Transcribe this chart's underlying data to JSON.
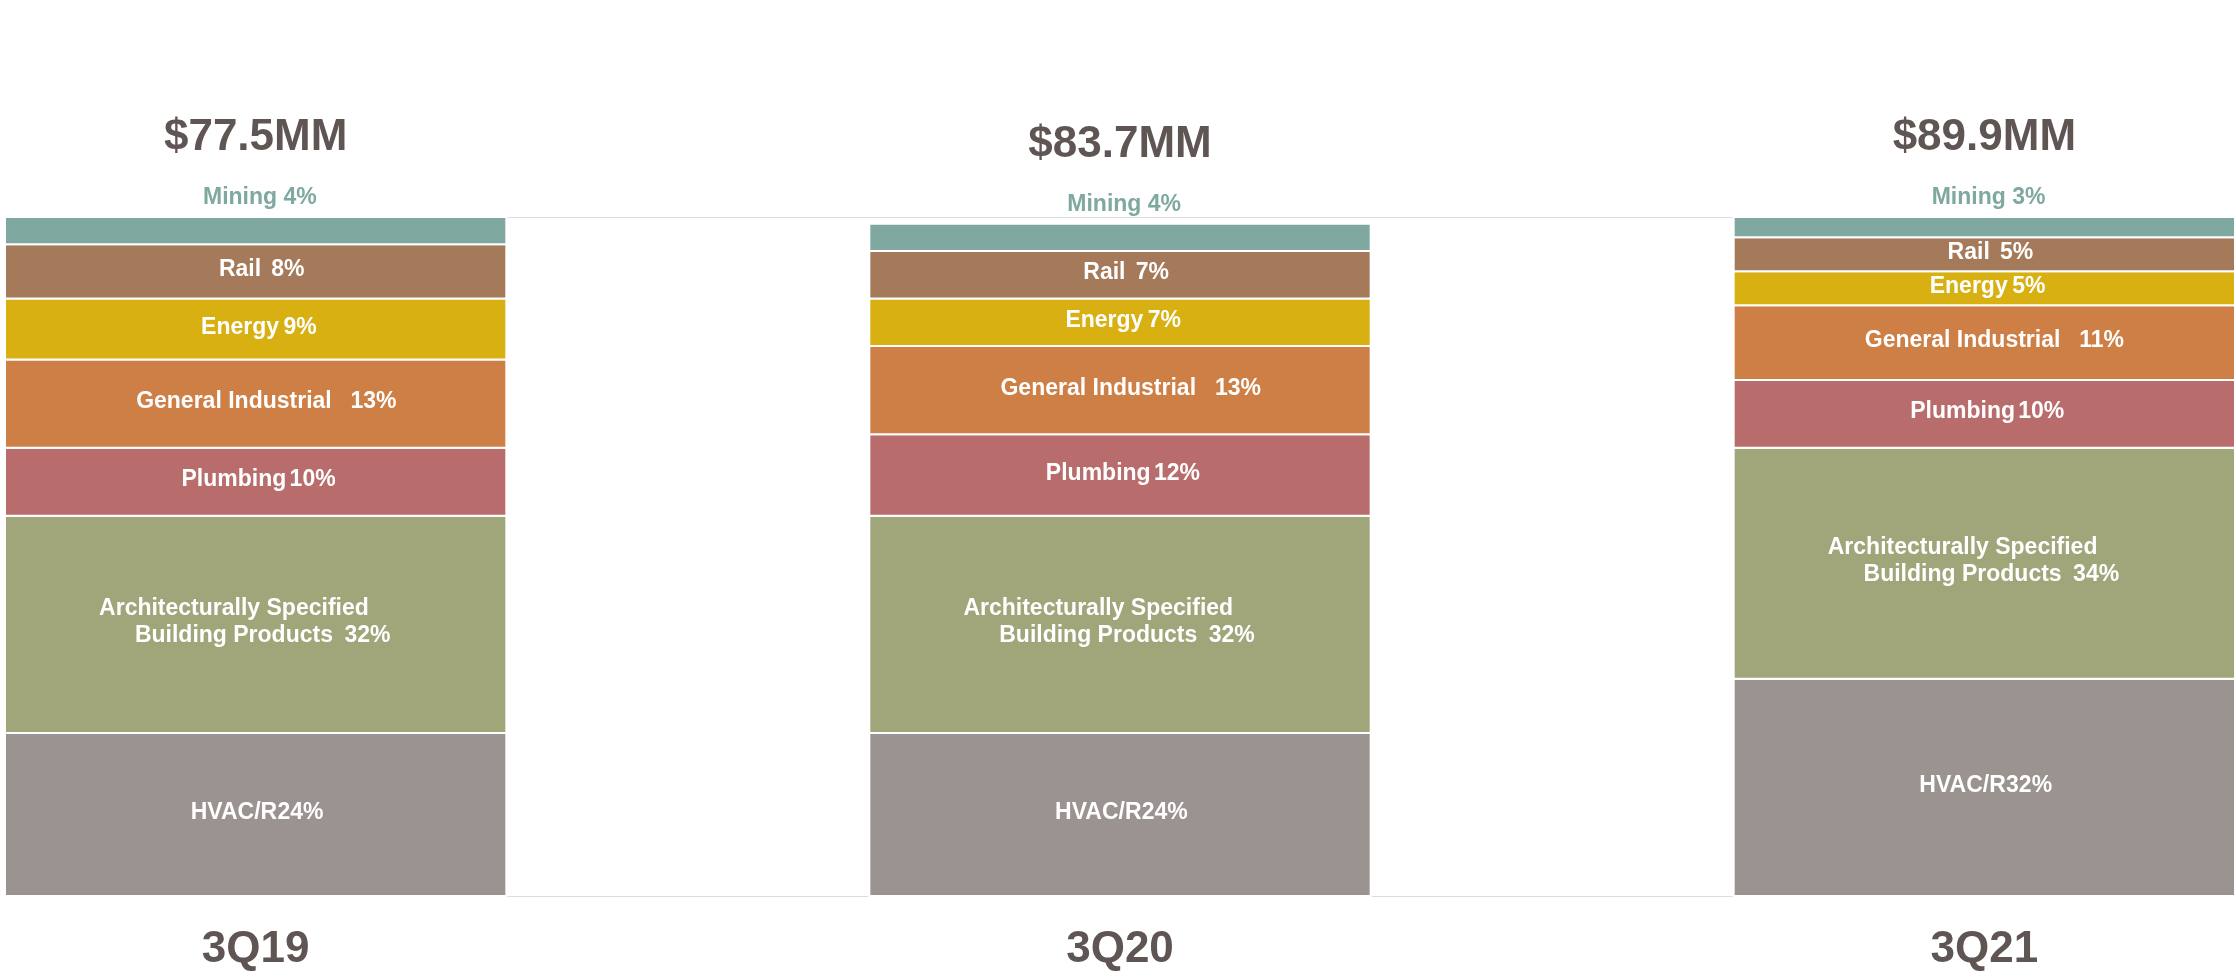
{
  "chart_data": {
    "type": "bar",
    "stacked": true,
    "categories": [
      "3Q19",
      "3Q20",
      "3Q21"
    ],
    "annotations": [
      "$77.5MM",
      "$83.7MM",
      "$89.9MM"
    ],
    "series": [
      {
        "name": "HVAC/R",
        "color": "#9a9390",
        "values": [
          24,
          24,
          32
        ],
        "value_labels": [
          "24%",
          "24%",
          "32%"
        ]
      },
      {
        "name": "Architecturally Specified Building Products",
        "color": "#a0a67a",
        "values": [
          32,
          32,
          34
        ],
        "value_labels": [
          "32%",
          "32%",
          "34%"
        ]
      },
      {
        "name": "Plumbing",
        "color": "#b86d6c",
        "values": [
          10,
          12,
          10
        ],
        "value_labels": [
          "10%",
          "12%",
          "10%"
        ]
      },
      {
        "name": "General Industrial",
        "color": "#cd7f45",
        "values": [
          13,
          13,
          11
        ],
        "value_labels": [
          "13%",
          "13%",
          "11%"
        ]
      },
      {
        "name": "Energy",
        "color": "#d8b012",
        "values": [
          9,
          7,
          5
        ],
        "value_labels": [
          "9%",
          "7%",
          "5%"
        ]
      },
      {
        "name": "Rail",
        "color": "#a57a5a",
        "values": [
          8,
          7,
          5
        ],
        "value_labels": [
          "8%",
          "7%",
          "5%"
        ]
      },
      {
        "name": "Mining",
        "color": "#7fa8a0",
        "values": [
          4,
          4,
          3
        ],
        "value_labels": [
          "4%",
          "4%",
          "3%"
        ]
      }
    ]
  }
}
